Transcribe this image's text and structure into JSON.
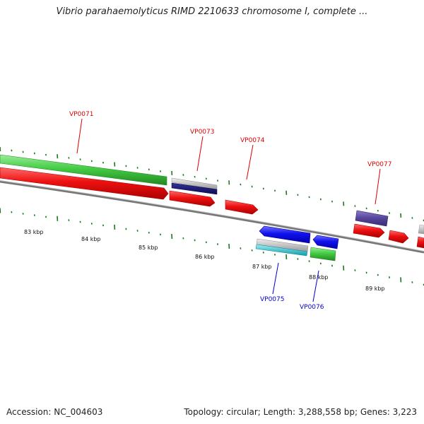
{
  "title": "Vibrio parahaemolyticus RIMD 2210633 chromosome I, complete ...",
  "footer": {
    "accession": "Accession: NC_004603",
    "summary": "Topology: circular; Length: 3,288,558 bp; Genes: 3,223"
  },
  "colors": {
    "backbone": "#808080",
    "tick": "#1a7a1a",
    "label_forward": "#dd0000",
    "label_reverse": "#0000cc",
    "red": "#ee1111",
    "green": "#44cc44",
    "blue": "#1111ee",
    "navy": "#111166",
    "purple": "#554499",
    "gray": "#c8c8c8",
    "cyan": "#22bbcc"
  },
  "scale_labels": [
    "83 kbp",
    "84 kbp",
    "85 kbp",
    "86 kbp",
    "87 kbp",
    "88 kbp",
    "89 kbp"
  ],
  "gene_labels": [
    {
      "text": "VP0071",
      "strand": "forward"
    },
    {
      "text": "VP0073",
      "strand": "forward"
    },
    {
      "text": "VP0074",
      "strand": "forward"
    },
    {
      "text": "VP0077",
      "strand": "forward"
    },
    {
      "text": "VP0075",
      "strand": "reverse"
    },
    {
      "text": "VP0076",
      "strand": "reverse"
    }
  ]
}
